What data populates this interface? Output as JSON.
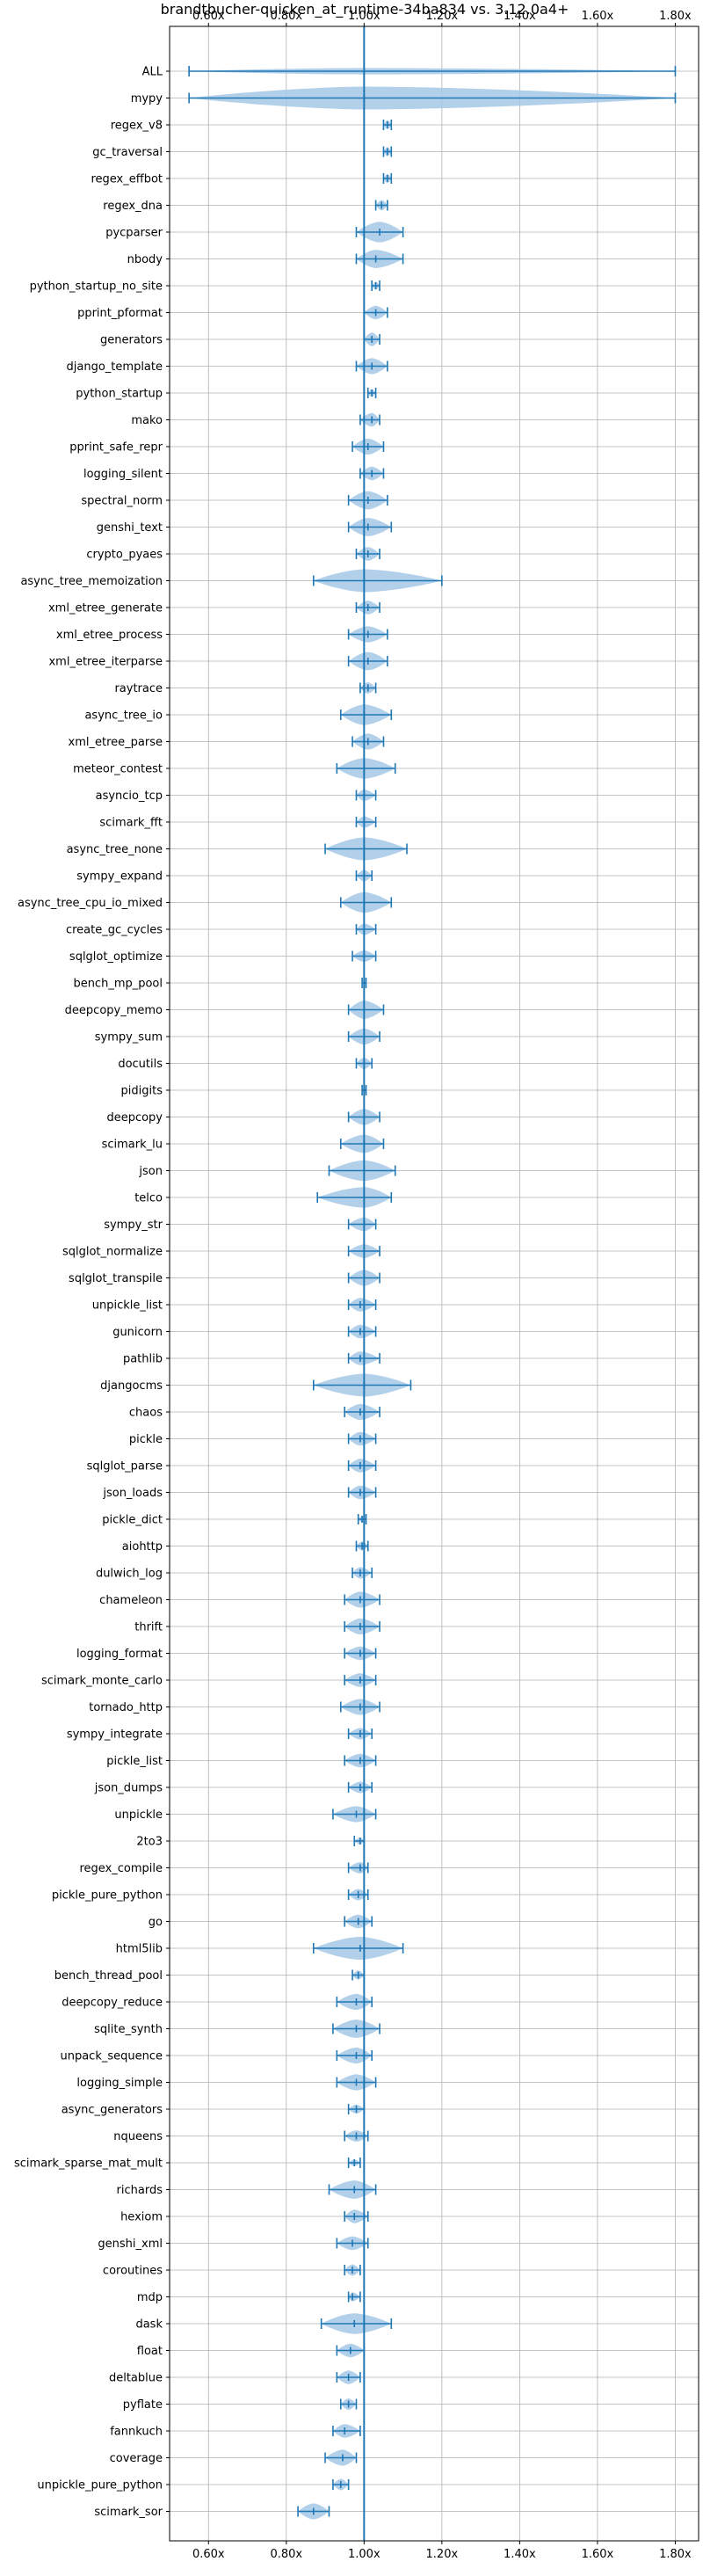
{
  "chart_data": {
    "type": "violin",
    "title": "brandtbucher-quicken_at_runtime-34ba834 vs. 3.12.0a4+",
    "xlabel": "",
    "ylabel": "",
    "xlim": [
      0.5,
      1.86
    ],
    "xticks": [
      0.6,
      0.8,
      1.0,
      1.2,
      1.4,
      1.6,
      1.8
    ],
    "xtick_labels": [
      "0.60x",
      "0.80x",
      "1.00x",
      "1.20x",
      "1.40x",
      "1.60x",
      "1.80x"
    ],
    "reference_line": 1.0,
    "grid": true,
    "colors": {
      "body": "#a6c8e6",
      "line": "#1f77b4"
    },
    "categories": [
      {
        "name": "ALL",
        "min": 0.55,
        "max": 1.8,
        "median": 1.0,
        "width": 0.28
      },
      {
        "name": "mypy",
        "min": 0.55,
        "max": 1.8,
        "median": 1.0,
        "width": 1.0
      },
      {
        "name": "regex_v8",
        "min": 1.05,
        "max": 1.07,
        "median": 1.06,
        "width": 0.4
      },
      {
        "name": "gc_traversal",
        "min": 1.05,
        "max": 1.07,
        "median": 1.06,
        "width": 0.4
      },
      {
        "name": "regex_effbot",
        "min": 1.05,
        "max": 1.07,
        "median": 1.06,
        "width": 0.4
      },
      {
        "name": "regex_dna",
        "min": 1.03,
        "max": 1.06,
        "median": 1.045,
        "width": 0.45
      },
      {
        "name": "pycparser",
        "min": 0.98,
        "max": 1.1,
        "median": 1.04,
        "width": 0.9
      },
      {
        "name": "nbody",
        "min": 0.98,
        "max": 1.1,
        "median": 1.03,
        "width": 0.8
      },
      {
        "name": "python_startup_no_site",
        "min": 1.02,
        "max": 1.04,
        "median": 1.03,
        "width": 0.35
      },
      {
        "name": "pprint_pformat",
        "min": 1.0,
        "max": 1.06,
        "median": 1.03,
        "width": 0.6
      },
      {
        "name": "generators",
        "min": 1.0,
        "max": 1.04,
        "median": 1.02,
        "width": 0.6
      },
      {
        "name": "django_template",
        "min": 0.98,
        "max": 1.06,
        "median": 1.02,
        "width": 0.7
      },
      {
        "name": "python_startup",
        "min": 1.01,
        "max": 1.03,
        "median": 1.02,
        "width": 0.35
      },
      {
        "name": "mako",
        "min": 0.99,
        "max": 1.04,
        "median": 1.02,
        "width": 0.6
      },
      {
        "name": "pprint_safe_repr",
        "min": 0.97,
        "max": 1.05,
        "median": 1.01,
        "width": 0.7
      },
      {
        "name": "logging_silent",
        "min": 0.99,
        "max": 1.05,
        "median": 1.02,
        "width": 0.6
      },
      {
        "name": "spectral_norm",
        "min": 0.96,
        "max": 1.06,
        "median": 1.01,
        "width": 0.8
      },
      {
        "name": "genshi_text",
        "min": 0.96,
        "max": 1.07,
        "median": 1.01,
        "width": 0.8
      },
      {
        "name": "crypto_pyaes",
        "min": 0.98,
        "max": 1.04,
        "median": 1.01,
        "width": 0.6
      },
      {
        "name": "async_tree_memoization",
        "min": 0.87,
        "max": 1.2,
        "median": 1.0,
        "width": 1.0
      },
      {
        "name": "xml_etree_generate",
        "min": 0.98,
        "max": 1.04,
        "median": 1.01,
        "width": 0.6
      },
      {
        "name": "xml_etree_process",
        "min": 0.96,
        "max": 1.06,
        "median": 1.01,
        "width": 0.7
      },
      {
        "name": "xml_etree_iterparse",
        "min": 0.96,
        "max": 1.06,
        "median": 1.01,
        "width": 0.8
      },
      {
        "name": "raytrace",
        "min": 0.99,
        "max": 1.03,
        "median": 1.01,
        "width": 0.5
      },
      {
        "name": "async_tree_io",
        "min": 0.94,
        "max": 1.07,
        "median": 1.0,
        "width": 0.9
      },
      {
        "name": "xml_etree_parse",
        "min": 0.97,
        "max": 1.05,
        "median": 1.01,
        "width": 0.7
      },
      {
        "name": "meteor_contest",
        "min": 0.93,
        "max": 1.08,
        "median": 1.0,
        "width": 0.9
      },
      {
        "name": "asyncio_tcp",
        "min": 0.98,
        "max": 1.03,
        "median": 1.0,
        "width": 0.5
      },
      {
        "name": "scimark_fft",
        "min": 0.98,
        "max": 1.03,
        "median": 1.0,
        "width": 0.5
      },
      {
        "name": "async_tree_none",
        "min": 0.9,
        "max": 1.11,
        "median": 1.0,
        "width": 1.0
      },
      {
        "name": "sympy_expand",
        "min": 0.98,
        "max": 1.02,
        "median": 1.0,
        "width": 0.5
      },
      {
        "name": "async_tree_cpu_io_mixed",
        "min": 0.94,
        "max": 1.07,
        "median": 1.0,
        "width": 0.9
      },
      {
        "name": "create_gc_cycles",
        "min": 0.98,
        "max": 1.03,
        "median": 1.0,
        "width": 0.5
      },
      {
        "name": "sqlglot_optimize",
        "min": 0.97,
        "max": 1.03,
        "median": 1.0,
        "width": 0.5
      },
      {
        "name": "bench_mp_pool",
        "min": 0.995,
        "max": 1.005,
        "median": 1.0,
        "width": 0.1
      },
      {
        "name": "deepcopy_memo",
        "min": 0.96,
        "max": 1.05,
        "median": 1.0,
        "width": 0.8
      },
      {
        "name": "sympy_sum",
        "min": 0.96,
        "max": 1.04,
        "median": 1.0,
        "width": 0.7
      },
      {
        "name": "docutils",
        "min": 0.98,
        "max": 1.02,
        "median": 1.0,
        "width": 0.5
      },
      {
        "name": "pidigits",
        "min": 0.995,
        "max": 1.005,
        "median": 1.0,
        "width": 0.2
      },
      {
        "name": "deepcopy",
        "min": 0.96,
        "max": 1.04,
        "median": 1.0,
        "width": 0.7
      },
      {
        "name": "scimark_lu",
        "min": 0.94,
        "max": 1.05,
        "median": 1.0,
        "width": 0.8
      },
      {
        "name": "json",
        "min": 0.91,
        "max": 1.08,
        "median": 1.0,
        "width": 0.9
      },
      {
        "name": "telco",
        "min": 0.88,
        "max": 1.07,
        "median": 1.0,
        "width": 0.9
      },
      {
        "name": "sympy_str",
        "min": 0.96,
        "max": 1.03,
        "median": 1.0,
        "width": 0.6
      },
      {
        "name": "sqlglot_normalize",
        "min": 0.96,
        "max": 1.04,
        "median": 1.0,
        "width": 0.6
      },
      {
        "name": "sqlglot_transpile",
        "min": 0.96,
        "max": 1.04,
        "median": 1.0,
        "width": 0.7
      },
      {
        "name": "unpickle_list",
        "min": 0.96,
        "max": 1.03,
        "median": 0.99,
        "width": 0.6
      },
      {
        "name": "gunicorn",
        "min": 0.96,
        "max": 1.03,
        "median": 0.99,
        "width": 0.6
      },
      {
        "name": "pathlib",
        "min": 0.96,
        "max": 1.04,
        "median": 0.99,
        "width": 0.6
      },
      {
        "name": "djangocms",
        "min": 0.87,
        "max": 1.12,
        "median": 1.0,
        "width": 1.0
      },
      {
        "name": "chaos",
        "min": 0.95,
        "max": 1.04,
        "median": 0.99,
        "width": 0.7
      },
      {
        "name": "pickle",
        "min": 0.96,
        "max": 1.03,
        "median": 0.99,
        "width": 0.6
      },
      {
        "name": "sqlglot_parse",
        "min": 0.96,
        "max": 1.03,
        "median": 0.99,
        "width": 0.6
      },
      {
        "name": "json_loads",
        "min": 0.96,
        "max": 1.03,
        "median": 0.99,
        "width": 0.6
      },
      {
        "name": "pickle_dict",
        "min": 0.985,
        "max": 1.005,
        "median": 0.995,
        "width": 0.3
      },
      {
        "name": "aiohttp",
        "min": 0.98,
        "max": 1.01,
        "median": 0.995,
        "width": 0.4
      },
      {
        "name": "dulwich_log",
        "min": 0.97,
        "max": 1.02,
        "median": 0.99,
        "width": 0.5
      },
      {
        "name": "chameleon",
        "min": 0.95,
        "max": 1.04,
        "median": 0.99,
        "width": 0.7
      },
      {
        "name": "thrift",
        "min": 0.95,
        "max": 1.04,
        "median": 0.99,
        "width": 0.7
      },
      {
        "name": "logging_format",
        "min": 0.95,
        "max": 1.03,
        "median": 0.99,
        "width": 0.6
      },
      {
        "name": "scimark_monte_carlo",
        "min": 0.95,
        "max": 1.03,
        "median": 0.99,
        "width": 0.6
      },
      {
        "name": "tornado_http",
        "min": 0.94,
        "max": 1.04,
        "median": 0.99,
        "width": 0.7
      },
      {
        "name": "sympy_integrate",
        "min": 0.96,
        "max": 1.02,
        "median": 0.99,
        "width": 0.5
      },
      {
        "name": "pickle_list",
        "min": 0.95,
        "max": 1.03,
        "median": 0.99,
        "width": 0.6
      },
      {
        "name": "json_dumps",
        "min": 0.96,
        "max": 1.02,
        "median": 0.99,
        "width": 0.5
      },
      {
        "name": "unpickle",
        "min": 0.92,
        "max": 1.03,
        "median": 0.98,
        "width": 0.7
      },
      {
        "name": "2to3",
        "min": 0.975,
        "max": 1.0,
        "median": 0.99,
        "width": 0.3
      },
      {
        "name": "regex_compile",
        "min": 0.96,
        "max": 1.01,
        "median": 0.99,
        "width": 0.5
      },
      {
        "name": "pickle_pure_python",
        "min": 0.96,
        "max": 1.01,
        "median": 0.985,
        "width": 0.5
      },
      {
        "name": "go",
        "min": 0.95,
        "max": 1.02,
        "median": 0.985,
        "width": 0.6
      },
      {
        "name": "html5lib",
        "min": 0.87,
        "max": 1.1,
        "median": 0.99,
        "width": 1.0
      },
      {
        "name": "bench_thread_pool",
        "min": 0.97,
        "max": 1.0,
        "median": 0.985,
        "width": 0.4
      },
      {
        "name": "deepcopy_reduce",
        "min": 0.93,
        "max": 1.02,
        "median": 0.98,
        "width": 0.7
      },
      {
        "name": "sqlite_synth",
        "min": 0.92,
        "max": 1.04,
        "median": 0.98,
        "width": 0.8
      },
      {
        "name": "unpack_sequence",
        "min": 0.93,
        "max": 1.02,
        "median": 0.98,
        "width": 0.7
      },
      {
        "name": "logging_simple",
        "min": 0.93,
        "max": 1.03,
        "median": 0.98,
        "width": 0.7
      },
      {
        "name": "async_generators",
        "min": 0.96,
        "max": 1.0,
        "median": 0.98,
        "width": 0.4
      },
      {
        "name": "nqueens",
        "min": 0.95,
        "max": 1.01,
        "median": 0.98,
        "width": 0.5
      },
      {
        "name": "scimark_sparse_mat_mult",
        "min": 0.96,
        "max": 0.99,
        "median": 0.975,
        "width": 0.3
      },
      {
        "name": "richards",
        "min": 0.91,
        "max": 1.03,
        "median": 0.975,
        "width": 0.8
      },
      {
        "name": "hexiom",
        "min": 0.95,
        "max": 1.01,
        "median": 0.975,
        "width": 0.6
      },
      {
        "name": "genshi_xml",
        "min": 0.93,
        "max": 1.01,
        "median": 0.97,
        "width": 0.6
      },
      {
        "name": "coroutines",
        "min": 0.95,
        "max": 0.99,
        "median": 0.97,
        "width": 0.5
      },
      {
        "name": "mdp",
        "min": 0.96,
        "max": 0.99,
        "median": 0.97,
        "width": 0.4
      },
      {
        "name": "dask",
        "min": 0.89,
        "max": 1.07,
        "median": 0.975,
        "width": 0.9
      },
      {
        "name": "float",
        "min": 0.93,
        "max": 1.0,
        "median": 0.965,
        "width": 0.6
      },
      {
        "name": "deltablue",
        "min": 0.93,
        "max": 0.99,
        "median": 0.96,
        "width": 0.6
      },
      {
        "name": "pyflate",
        "min": 0.94,
        "max": 0.98,
        "median": 0.96,
        "width": 0.5
      },
      {
        "name": "fannkuch",
        "min": 0.92,
        "max": 0.99,
        "median": 0.95,
        "width": 0.6
      },
      {
        "name": "coverage",
        "min": 0.9,
        "max": 0.98,
        "median": 0.945,
        "width": 0.7
      },
      {
        "name": "unpickle_pure_python",
        "min": 0.92,
        "max": 0.96,
        "median": 0.94,
        "width": 0.5
      },
      {
        "name": "scimark_sor",
        "min": 0.83,
        "max": 0.91,
        "median": 0.87,
        "width": 0.7
      }
    ]
  }
}
